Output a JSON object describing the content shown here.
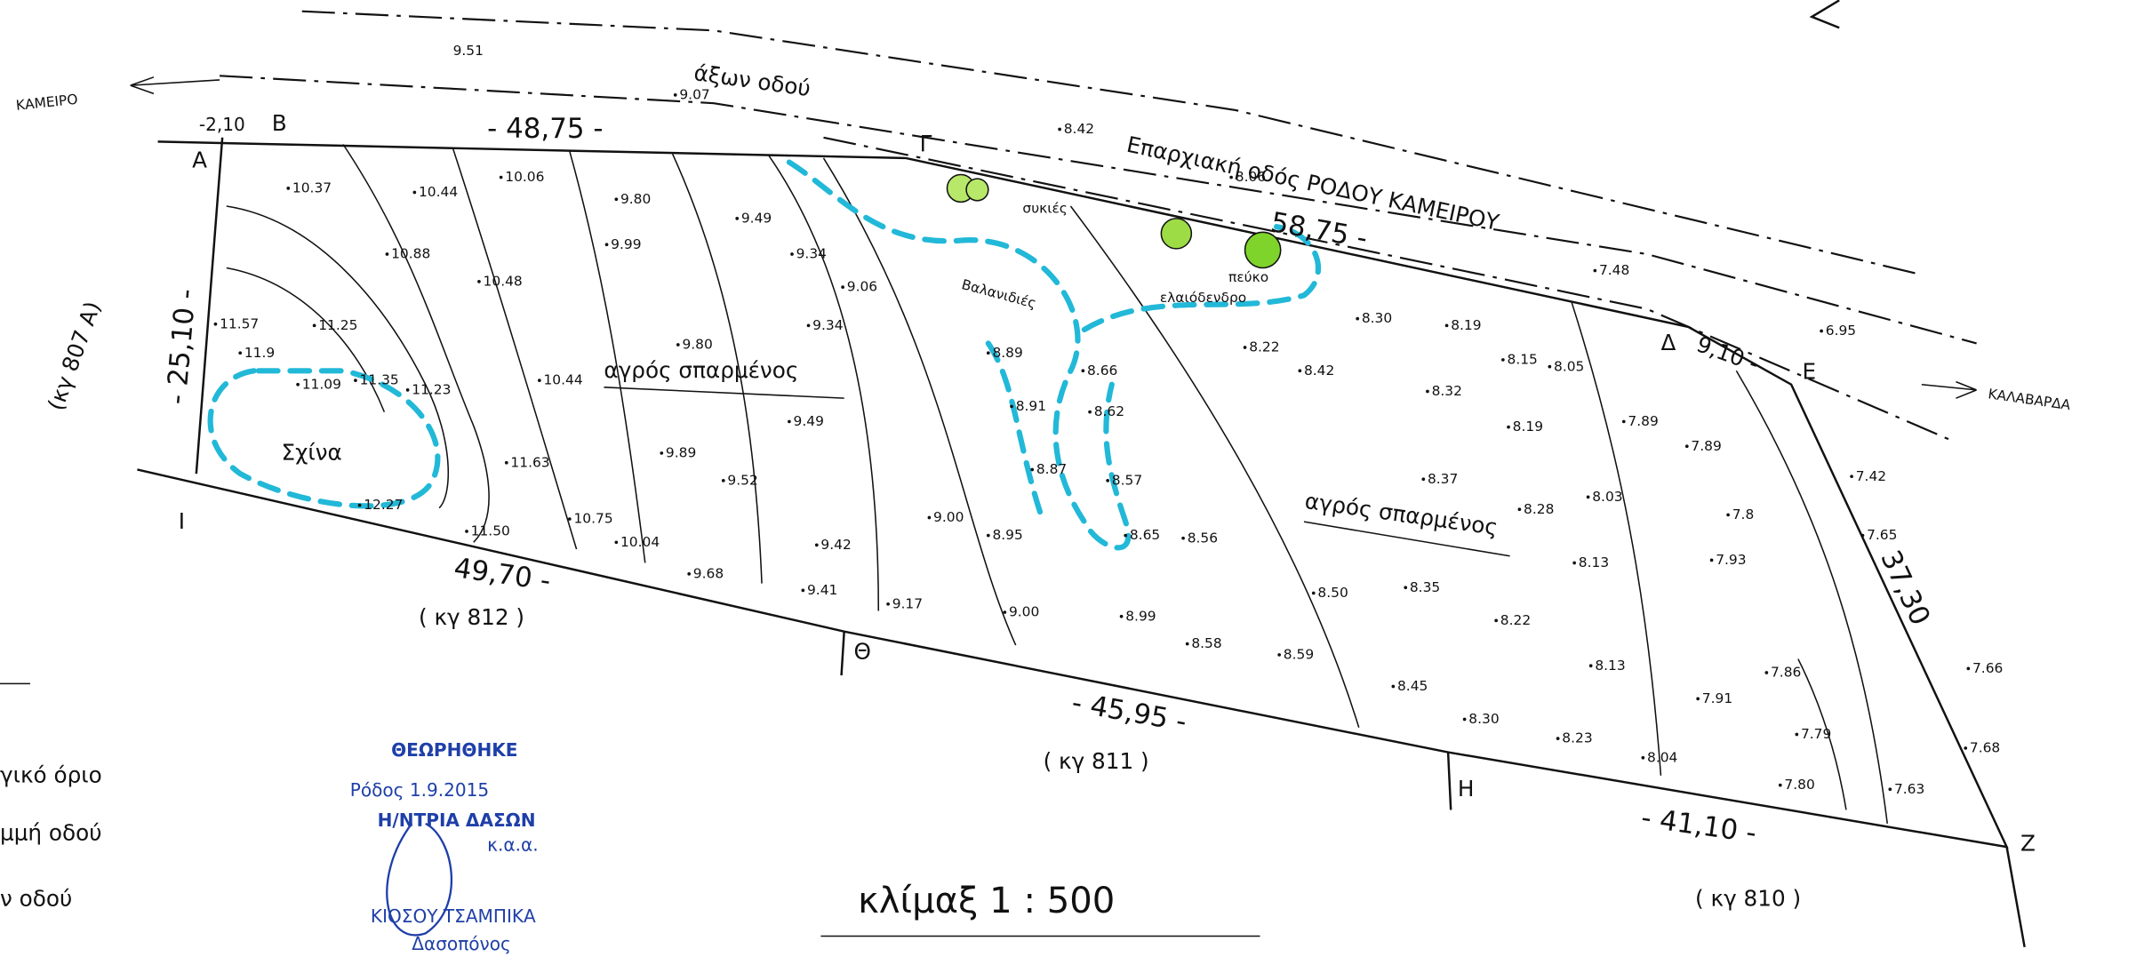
{
  "road": {
    "axis_elevation": "9.51",
    "axis_label": "άξων οδού",
    "name": "Επαρχιακή οδός ΡΟΔΟΥ ΚΑΜΕΙΡΟΥ",
    "to_left": "ΚΑΜΕΙΡΟ",
    "to_right": "ΚΑΛΑΒΑΡΔΑ"
  },
  "points": [
    "A",
    "B",
    "Γ",
    "Δ",
    "E",
    "Z",
    "H",
    "Θ",
    "I"
  ],
  "dimensions": [
    "-2,10",
    "- 48,75 -",
    "58,75 -",
    "9,10 -",
    "37,30",
    "- 41,10 -",
    "- 45,95 -",
    "49,70 -",
    "- 25,10 -"
  ],
  "neighbors": [
    "(κγ 807 Α)",
    "( κγ 812 )",
    "( κγ 811 )",
    "( κγ 810 )"
  ],
  "fields": [
    "αγρός σπαρμένος",
    "αγρός σπαρμένος"
  ],
  "features": [
    "Σχίνα",
    "Βαλανιδιές",
    "συκιές",
    "πεύκο",
    "ελαιόδενδρο"
  ],
  "elevations": [
    "9.07",
    "8.42",
    "8.06",
    "7.48",
    "6.95",
    "10.37",
    "10.44",
    "10.06",
    "9.80",
    "9.49",
    "10.88",
    "10.48",
    "9.99",
    "9.34",
    "9.06",
    "9.34",
    "11.57",
    "11.25",
    "11.9",
    "11.09",
    "11.35",
    "11.23",
    "10.44",
    "9.80",
    "9.49",
    "9.89",
    "11.63",
    "9.52",
    "12.27",
    "11.50",
    "10.75",
    "10.04",
    "9.68",
    "9.42",
    "9.41",
    "9.17",
    "9.00",
    "9.00",
    "8.95",
    "8.89",
    "8.91",
    "8.87",
    "8.66",
    "8.62",
    "8.57",
    "8.65",
    "8.56",
    "8.99",
    "8.58",
    "8.59",
    "8.50",
    "8.35",
    "8.37",
    "8.22",
    "8.45",
    "8.30",
    "8.23",
    "8.04",
    "8.13",
    "8.13",
    "8.28",
    "8.03",
    "8.19",
    "8.15",
    "8.05",
    "8.32",
    "8.42",
    "8.22",
    "8.30",
    "8.19",
    "7.89",
    "7.89",
    "7.8",
    "7.93",
    "7.91",
    "7.86",
    "7.79",
    "7.80",
    "7.63",
    "7.68",
    "7.66",
    "7.65",
    "7.42"
  ],
  "scale": "κλίμαξ 1 : 500",
  "stamp": {
    "title": "ΘΕΩΡΗΘΗΚΕ",
    "date": "Ρόδος 1.9.2015",
    "office": "Η/ΝΤΡΙΑ ΔΑΣΩΝ",
    "signature": "κ.α.α.",
    "name": "ΚΙΟΣΟΥ ΤΣΑΜΠΙΚΑ",
    "role": "Δασοπόνος"
  },
  "legend": [
    "γικό όριο",
    "μμή οδού",
    "ν οδού"
  ]
}
